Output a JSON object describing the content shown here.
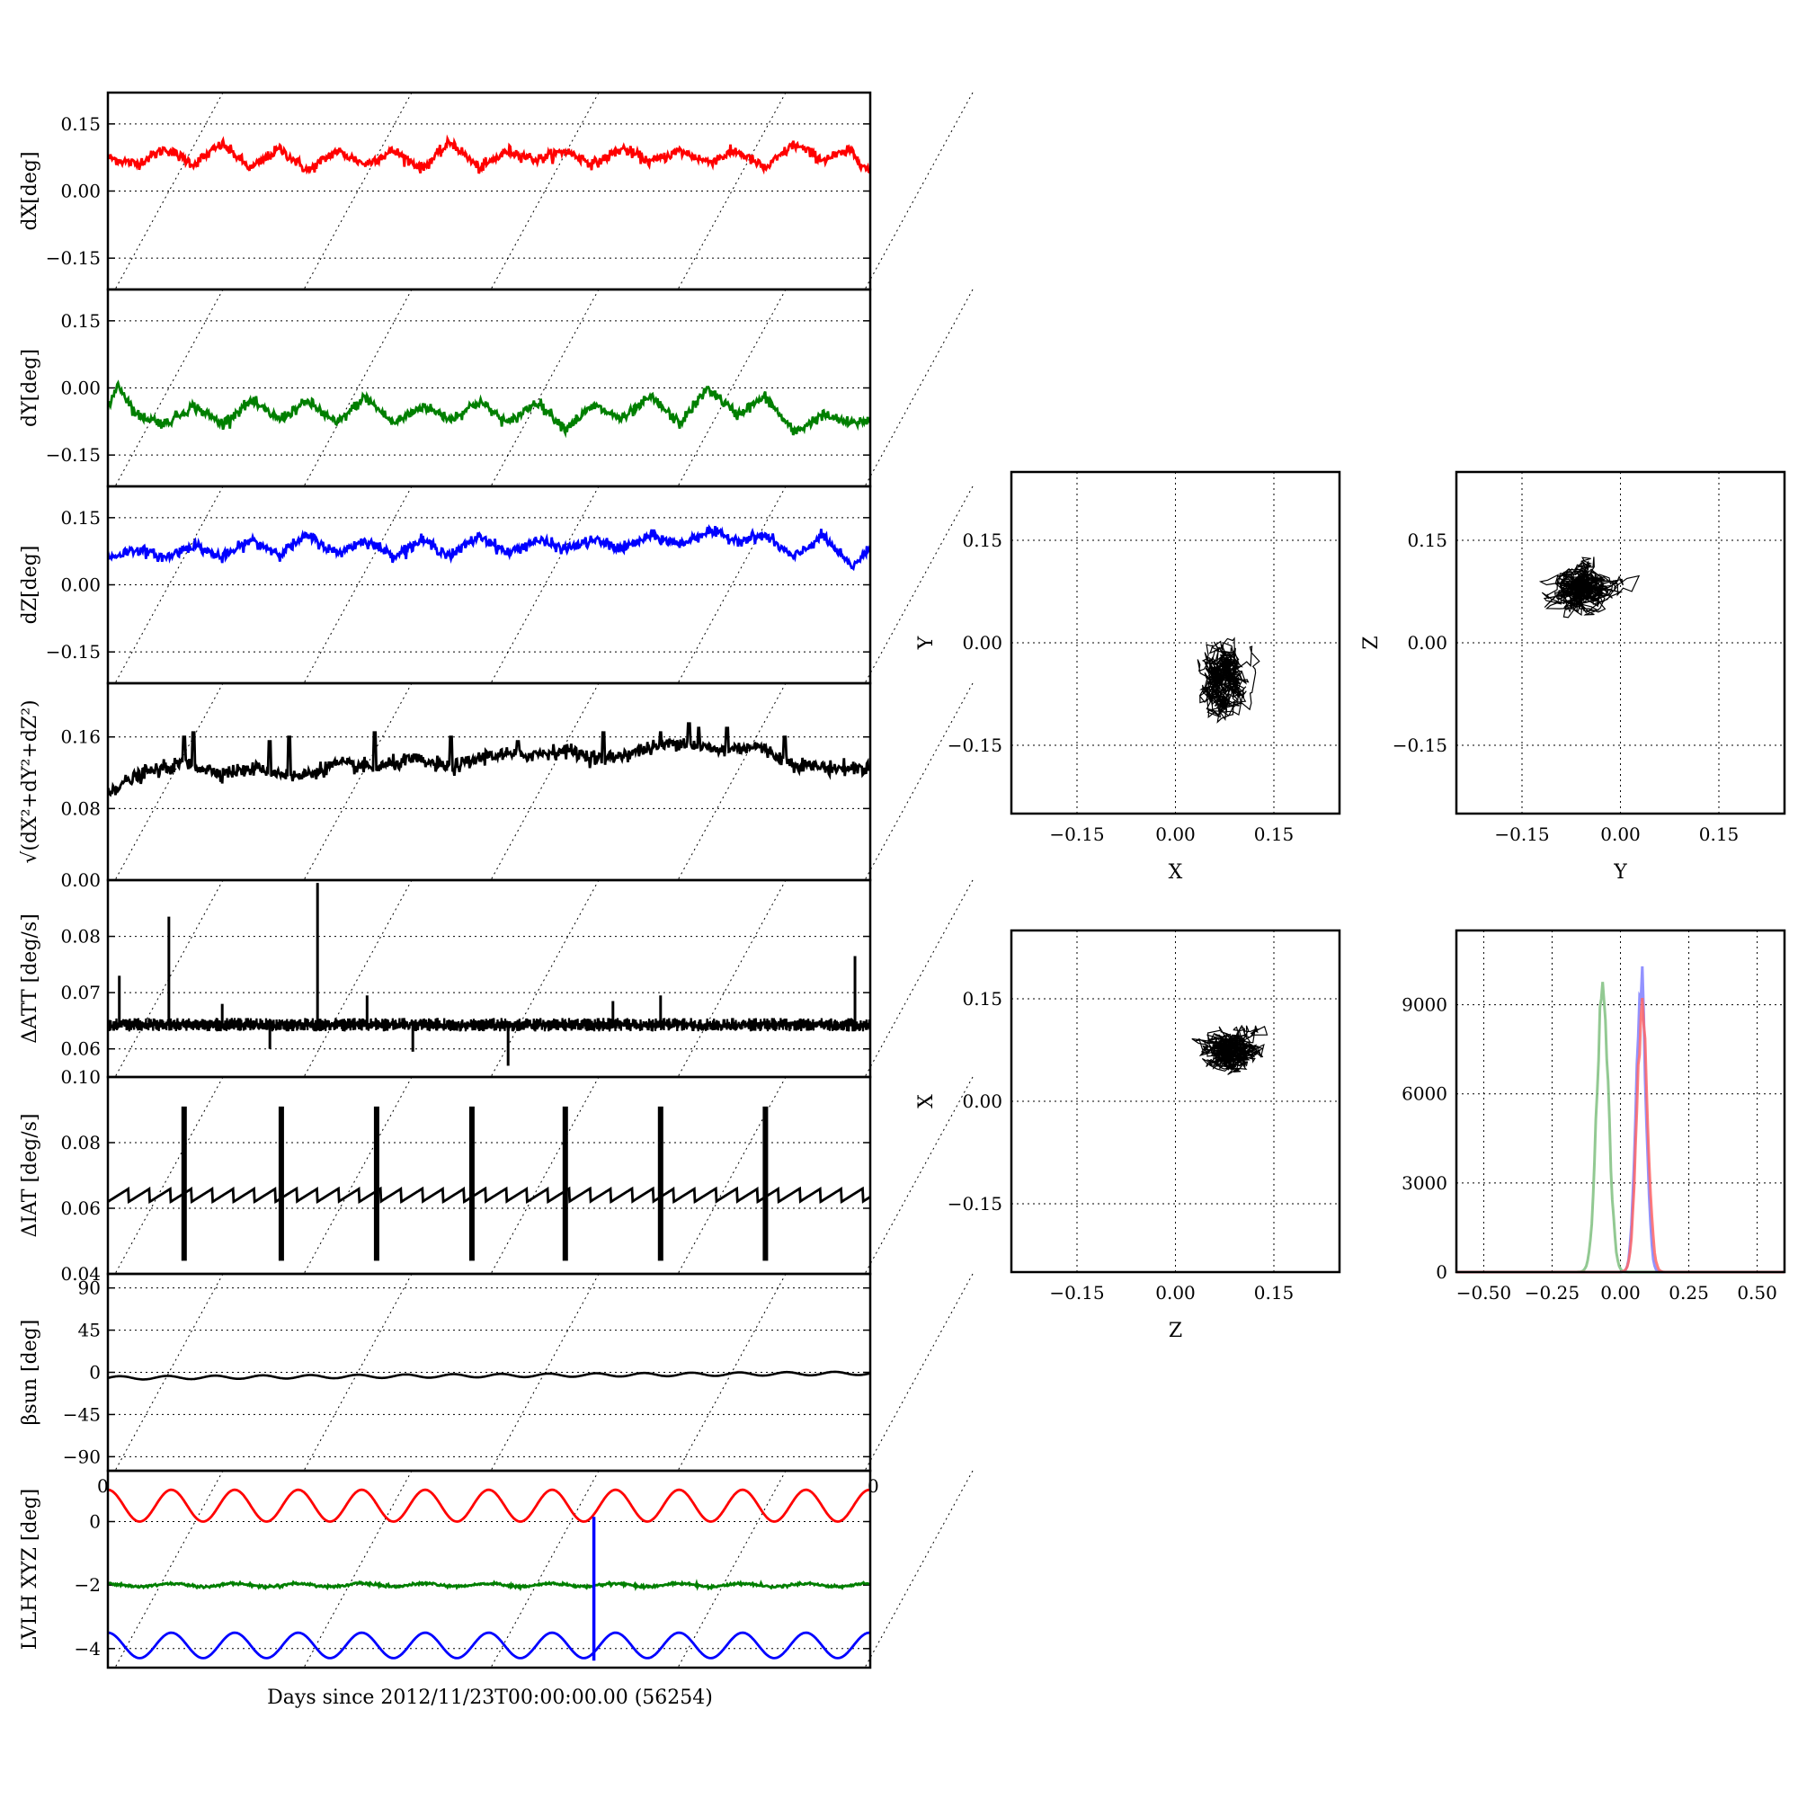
{
  "figure": {
    "xlabel": "Days since 2012/11/23T00:00:00.00 (56254)",
    "x_tick_label_left": "0",
    "x_tick_label_right": "0"
  },
  "chart_data": [
    {
      "type": "line",
      "ylabel": "dX[deg]",
      "ylim": [
        -0.22,
        0.22
      ],
      "yticks": [
        -0.15,
        0.0,
        0.15
      ],
      "ytick_labels": [
        "−0.15",
        "0.00",
        "0.15"
      ],
      "xlim": [
        0,
        4
      ],
      "grid": true,
      "series": [
        {
          "color": "#ff0000",
          "noise_amplitude": 0.006,
          "x": [
            0,
            0.15,
            0.3,
            0.45,
            0.6,
            0.75,
            0.9,
            1.05,
            1.2,
            1.35,
            1.5,
            1.65,
            1.8,
            1.95,
            2.1,
            2.25,
            2.4,
            2.55,
            2.7,
            2.85,
            3.0,
            3.15,
            3.3,
            3.45,
            3.6,
            3.75,
            3.9,
            4.0
          ],
          "values": [
            0.075,
            0.06,
            0.095,
            0.06,
            0.105,
            0.05,
            0.095,
            0.045,
            0.09,
            0.06,
            0.09,
            0.05,
            0.11,
            0.05,
            0.09,
            0.07,
            0.09,
            0.06,
            0.095,
            0.065,
            0.09,
            0.065,
            0.09,
            0.05,
            0.105,
            0.07,
            0.09,
            0.04
          ]
        }
      ]
    },
    {
      "type": "line",
      "ylabel": "dY[deg]",
      "ylim": [
        -0.22,
        0.22
      ],
      "yticks": [
        -0.15,
        0.0,
        0.15
      ],
      "ytick_labels": [
        "−0.15",
        "0.00",
        "0.15"
      ],
      "xlim": [
        0,
        4
      ],
      "grid": true,
      "series": [
        {
          "color": "#007f00",
          "noise_amplitude": 0.006,
          "x": [
            0,
            0.05,
            0.15,
            0.3,
            0.45,
            0.6,
            0.75,
            0.9,
            1.05,
            1.2,
            1.35,
            1.5,
            1.65,
            1.8,
            1.95,
            2.1,
            2.25,
            2.4,
            2.55,
            2.7,
            2.85,
            3.0,
            3.15,
            3.3,
            3.45,
            3.6,
            3.75,
            3.9,
            4.0
          ],
          "values": [
            -0.05,
            0.01,
            -0.06,
            -0.08,
            -0.04,
            -0.08,
            -0.03,
            -0.07,
            -0.03,
            -0.08,
            -0.02,
            -0.08,
            -0.04,
            -0.07,
            -0.03,
            -0.08,
            -0.03,
            -0.09,
            -0.04,
            -0.07,
            -0.02,
            -0.08,
            0.0,
            -0.06,
            -0.02,
            -0.1,
            -0.06,
            -0.08,
            -0.07
          ]
        }
      ]
    },
    {
      "type": "line",
      "ylabel": "dZ[deg]",
      "ylim": [
        -0.22,
        0.22
      ],
      "yticks": [
        -0.15,
        0.0,
        0.15
      ],
      "ytick_labels": [
        "−0.15",
        "0.00",
        "0.15"
      ],
      "xlim": [
        0,
        4
      ],
      "grid": true,
      "series": [
        {
          "color": "#0000ff",
          "noise_amplitude": 0.006,
          "x": [
            0,
            0.15,
            0.3,
            0.45,
            0.6,
            0.75,
            0.9,
            1.05,
            1.2,
            1.35,
            1.5,
            1.65,
            1.8,
            1.95,
            2.1,
            2.25,
            2.4,
            2.55,
            2.7,
            2.85,
            3.0,
            3.15,
            3.3,
            3.45,
            3.6,
            3.75,
            3.9,
            4.0
          ],
          "values": [
            0.06,
            0.08,
            0.06,
            0.09,
            0.06,
            0.1,
            0.07,
            0.11,
            0.07,
            0.1,
            0.065,
            0.1,
            0.065,
            0.11,
            0.07,
            0.1,
            0.08,
            0.1,
            0.08,
            0.11,
            0.09,
            0.12,
            0.1,
            0.11,
            0.06,
            0.11,
            0.04,
            0.08
          ]
        }
      ]
    },
    {
      "type": "line",
      "ylabel": "√(dX²+dY²+dZ²)",
      "ylim": [
        0.0,
        0.22
      ],
      "yticks": [
        0.0,
        0.08,
        0.16
      ],
      "ytick_labels": [
        "0.00",
        "0.08",
        "0.16"
      ],
      "xlim": [
        0,
        4
      ],
      "grid": true,
      "series": [
        {
          "color": "#000000",
          "noise_amplitude": 0.004,
          "x": [
            0,
            0.2,
            0.4,
            0.6,
            0.8,
            1.0,
            1.2,
            1.4,
            1.6,
            1.8,
            2.0,
            2.2,
            2.4,
            2.6,
            2.8,
            3.0,
            3.2,
            3.4,
            3.6,
            3.8,
            4.0
          ],
          "values": [
            0.1,
            0.12,
            0.13,
            0.12,
            0.125,
            0.115,
            0.13,
            0.125,
            0.135,
            0.125,
            0.14,
            0.14,
            0.145,
            0.135,
            0.145,
            0.155,
            0.145,
            0.15,
            0.13,
            0.125,
            0.125
          ],
          "spikes_x": [
            0.4,
            0.45,
            0.85,
            0.95,
            1.4,
            1.8,
            2.15,
            2.6,
            2.9,
            3.05,
            3.1,
            3.25,
            3.55
          ],
          "spikes_y": [
            0.16,
            0.165,
            0.155,
            0.16,
            0.165,
            0.16,
            0.155,
            0.165,
            0.165,
            0.175,
            0.17,
            0.17,
            0.16
          ]
        }
      ]
    },
    {
      "type": "line",
      "ylabel": "ΔATT [deg/s]",
      "ylim": [
        0.055,
        0.09
      ],
      "yticks": [
        0.06,
        0.07,
        0.08
      ],
      "ytick_labels": [
        "0.06",
        "0.07",
        "0.08"
      ],
      "xlim": [
        0,
        4
      ],
      "grid": true,
      "series": [
        {
          "color": "#000000",
          "noise_amplitude": 0.0012,
          "baseline": 0.0643,
          "spikes_x": [
            0.06,
            0.32,
            0.6,
            1.1,
            1.36,
            2.65,
            2.9,
            3.92
          ],
          "spikes_y": [
            0.073,
            0.0835,
            0.068,
            0.0895,
            0.0695,
            0.0685,
            0.0695,
            0.0765
          ],
          "dips_x": [
            0.85,
            1.6,
            2.1
          ],
          "dips_y": [
            0.06,
            0.0595,
            0.057
          ]
        }
      ]
    },
    {
      "type": "line",
      "ylabel": "ΔIAT [deg/s]",
      "ylim": [
        0.04,
        0.1
      ],
      "yticks": [
        0.04,
        0.06,
        0.08,
        0.1
      ],
      "ytick_labels": [
        "0.04",
        "0.06",
        "0.08",
        "0.10"
      ],
      "xlim": [
        0,
        4
      ],
      "grid": true,
      "series": [
        {
          "color": "#000000",
          "sawtooth_low": 0.062,
          "sawtooth_high": 0.066,
          "sawtooth_period": 0.11,
          "bursts_x": [
            0.4,
            0.91,
            1.41,
            1.91,
            2.4,
            2.9,
            3.45
          ],
          "burst_high": 0.091,
          "burst_low": 0.044
        }
      ]
    },
    {
      "type": "line",
      "ylabel": "βsun [deg]",
      "ylim": [
        -105,
        105
      ],
      "yticks": [
        -90,
        -45,
        0,
        45,
        90
      ],
      "ytick_labels": [
        "−90",
        "−45",
        "0",
        "45",
        "90"
      ],
      "xlim": [
        0,
        4
      ],
      "grid": true,
      "series": [
        {
          "color": "#000000",
          "mean_start": -6,
          "mean_end": -1,
          "amplitude": 1.8,
          "period": 0.25
        }
      ]
    },
    {
      "type": "line",
      "ylabel": "LVLH XYZ [deg]",
      "ylim": [
        -4.6,
        1.6
      ],
      "yticks": [
        -4,
        -2,
        0
      ],
      "ytick_labels": [
        "−4",
        "−2",
        "0"
      ],
      "xlim": [
        0,
        4
      ],
      "grid": true,
      "series": [
        {
          "color": "#ff0000",
          "mean": 0.5,
          "amplitude": 0.5,
          "period": 0.333
        },
        {
          "color": "#007f00",
          "mean": -2.0,
          "amplitude": 0.05,
          "period": 0.333
        },
        {
          "color": "#0000ff",
          "mean": -3.9,
          "amplitude": 0.4,
          "period": 0.333,
          "spike_x": 2.55,
          "spike_to": 0.15
        }
      ]
    },
    {
      "type": "scatter",
      "xlabel": "X",
      "ylabel": "Y",
      "xlim": [
        -0.25,
        0.25
      ],
      "ylim": [
        -0.25,
        0.25
      ],
      "xticks": [
        -0.15,
        0.0,
        0.15
      ],
      "yticks": [
        -0.15,
        0.0,
        0.15
      ],
      "tick_labels": [
        "−0.15",
        "0.00",
        "0.15"
      ],
      "grid": true,
      "series": [
        {
          "color": "#000000",
          "center": [
            0.075,
            -0.055
          ],
          "spread": [
            0.02,
            0.028
          ],
          "tilt": 0.6,
          "count": 700
        }
      ]
    },
    {
      "type": "scatter",
      "xlabel": "Y",
      "ylabel": "Z",
      "xlim": [
        -0.25,
        0.25
      ],
      "ylim": [
        -0.25,
        0.25
      ],
      "xticks": [
        -0.15,
        0.0,
        0.15
      ],
      "yticks": [
        -0.15,
        0.0,
        0.15
      ],
      "tick_labels": [
        "−0.15",
        "0.00",
        "0.15"
      ],
      "grid": true,
      "series": [
        {
          "color": "#000000",
          "center": [
            -0.06,
            0.08
          ],
          "spread": [
            0.03,
            0.022
          ],
          "tilt": 0.5,
          "count": 700
        }
      ]
    },
    {
      "type": "scatter",
      "xlabel": "Z",
      "ylabel": "X",
      "xlim": [
        -0.25,
        0.25
      ],
      "ylim": [
        -0.25,
        0.25
      ],
      "xticks": [
        -0.15,
        0.0,
        0.15
      ],
      "yticks": [
        -0.15,
        0.0,
        0.15
      ],
      "tick_labels": [
        "−0.15",
        "0.00",
        "0.15"
      ],
      "grid": true,
      "series": [
        {
          "color": "#000000",
          "center": [
            0.08,
            0.075
          ],
          "spread": [
            0.028,
            0.02
          ],
          "tilt": -0.2,
          "count": 700
        }
      ]
    },
    {
      "type": "bar",
      "xlim": [
        -0.6,
        0.6
      ],
      "ylim": [
        0,
        11500
      ],
      "xticks": [
        -0.5,
        -0.25,
        0.0,
        0.25,
        0.5
      ],
      "xtick_labels": [
        "−0.50",
        "−0.25",
        "0.00",
        "0.25",
        "0.50"
      ],
      "yticks": [
        0,
        3000,
        6000,
        9000
      ],
      "ytick_labels": [
        "0",
        "3000",
        "6000",
        "9000"
      ],
      "grid": true,
      "series": [
        {
          "color": "#7fbf7f",
          "center": -0.065,
          "peak": 9900,
          "width": 0.022
        },
        {
          "color": "#7f7fff",
          "center": 0.075,
          "peak": 10800,
          "width": 0.018
        },
        {
          "color": "#ff6666",
          "center": 0.08,
          "peak": 9300,
          "width": 0.02
        }
      ]
    }
  ]
}
